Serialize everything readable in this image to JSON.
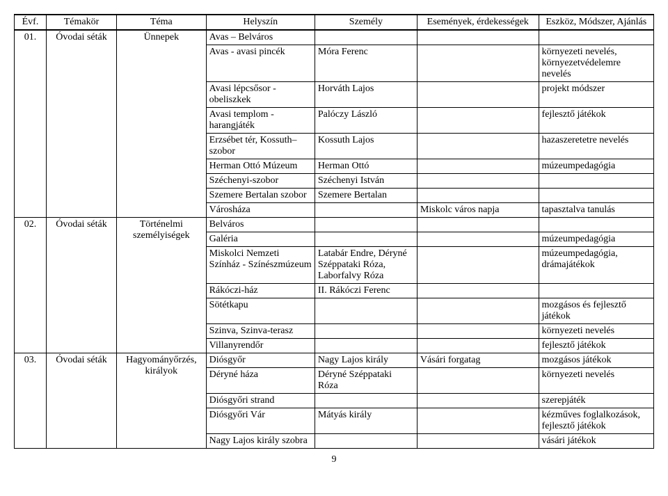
{
  "headers": {
    "evf": "Évf.",
    "temakor": "Témakör",
    "tema": "Téma",
    "helyszin": "Helyszín",
    "szemely": "Személy",
    "esemeny": "Események, érdekességek",
    "eszkoz": "Eszköz, Módszer, Ajánlás"
  },
  "groups": [
    {
      "evf": "01.",
      "temakor": "Óvodai séták",
      "tema": "Ünnepek",
      "rows": [
        {
          "helyszin": "Avas – Belváros",
          "szemely": "",
          "esemeny": "",
          "eszkoz": ""
        },
        {
          "helyszin": "Avas - avasi pincék",
          "szemely": "Móra Ferenc",
          "esemeny": "",
          "eszkoz": "környezeti nevelés, környezetvédelemre nevelés"
        },
        {
          "helyszin": "Avasi lépcsősor - obeliszkek",
          "szemely": "Horváth Lajos",
          "esemeny": "",
          "eszkoz": "projekt módszer"
        },
        {
          "helyszin": "Avasi templom - harangjáték",
          "szemely": "Palóczy László",
          "esemeny": "",
          "eszkoz": "fejlesztő játékok"
        },
        {
          "helyszin": "Erzsébet tér, Kossuth–szobor",
          "szemely": "Kossuth Lajos",
          "esemeny": "",
          "eszkoz": "hazaszeretetre nevelés"
        },
        {
          "helyszin": "Herman Ottó Múzeum",
          "szemely": "Herman Ottó",
          "esemeny": "",
          "eszkoz": "múzeumpedagógia"
        },
        {
          "helyszin": "Széchenyi-szobor",
          "szemely": "Széchenyi István",
          "esemeny": "",
          "eszkoz": ""
        },
        {
          "helyszin": "Szemere Bertalan szobor",
          "szemely": "Szemere Bertalan",
          "esemeny": "",
          "eszkoz": ""
        },
        {
          "helyszin": "Városháza",
          "szemely": "",
          "esemeny": "Miskolc város napja",
          "eszkoz": "tapasztalva tanulás"
        }
      ]
    },
    {
      "evf": "02.",
      "temakor": "Óvodai séták",
      "tema": "Történelmi személyiségek",
      "rows": [
        {
          "helyszin": "Belváros",
          "szemely": "",
          "esemeny": "",
          "eszkoz": ""
        },
        {
          "helyszin": "Galéria",
          "szemely": "",
          "esemeny": "",
          "eszkoz": "múzeumpedagógia"
        },
        {
          "helyszin": "Miskolci Nemzeti Színház - Színészmúzeum",
          "szemely": "Latabár Endre, Déryné Széppataki Róza, Laborfalvy Róza",
          "esemeny": "",
          "eszkoz": "múzeumpedagógia, drámajátékok"
        },
        {
          "helyszin": "Rákóczi-ház",
          "szemely": "II. Rákóczi Ferenc",
          "esemeny": "",
          "eszkoz": ""
        },
        {
          "helyszin": "Sötétkapu",
          "szemely": "",
          "esemeny": "",
          "eszkoz": "mozgásos és fejlesztő játékok"
        },
        {
          "helyszin": "Szinva, Szinva-terasz",
          "szemely": "",
          "esemeny": "",
          "eszkoz": "környezeti nevelés"
        },
        {
          "helyszin": "Villanyrendőr",
          "szemely": "",
          "esemeny": "",
          "eszkoz": "fejlesztő játékok"
        }
      ]
    },
    {
      "evf": "03.",
      "temakor": "Óvodai séták",
      "tema": "Hagyományőrzés, királyok",
      "rows": [
        {
          "helyszin": "Diósgyőr",
          "szemely": "Nagy Lajos király",
          "esemeny": "Vásári forgatag",
          "eszkoz": "mozgásos játékok"
        },
        {
          "helyszin": "Déryné háza",
          "szemely": "Déryné Széppataki Róza",
          "esemeny": "",
          "eszkoz": "környezeti nevelés"
        },
        {
          "helyszin": "Diósgyőri strand",
          "szemely": "",
          "esemeny": "",
          "eszkoz": "szerepjáték"
        },
        {
          "helyszin": "Diósgyőri Vár",
          "szemely": "Mátyás király",
          "esemeny": "",
          "eszkoz": "kézműves foglalkozások, fejlesztő játékok"
        },
        {
          "helyszin": "Nagy Lajos király szobra",
          "szemely": "",
          "esemeny": "",
          "eszkoz": "vásári játékok"
        }
      ]
    }
  ],
  "pageNumber": "9"
}
